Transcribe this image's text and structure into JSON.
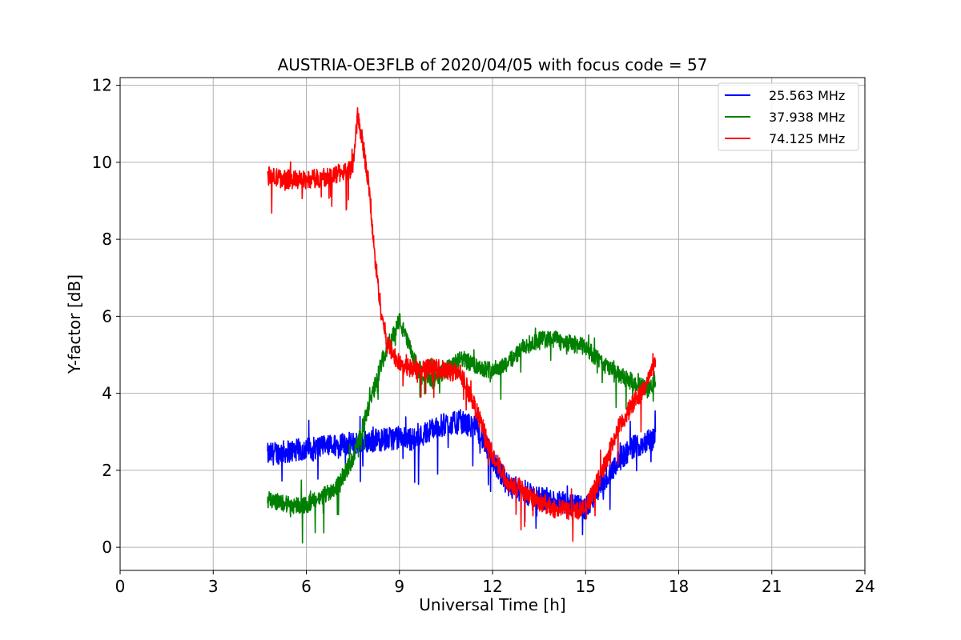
{
  "chart_data": {
    "type": "line",
    "title": "AUSTRIA-OE3FLB of 2020/04/05 with focus code = 57",
    "xlabel": "Universal Time [h]",
    "ylabel": "Y-factor [dB]",
    "xlim": [
      0,
      24
    ],
    "ylim": [
      -0.6,
      12.2
    ],
    "xticks": [
      0,
      3,
      6,
      9,
      12,
      15,
      18,
      21,
      24
    ],
    "yticks": [
      0,
      2,
      4,
      6,
      8,
      10,
      12
    ],
    "grid": true,
    "legend_position": "top-right",
    "series": [
      {
        "name": "25.563 MHz",
        "color": "#0000ff",
        "noise": 0.6,
        "x": [
          4.75,
          5.0,
          5.5,
          6.0,
          6.5,
          7.0,
          7.5,
          8.0,
          8.5,
          9.0,
          9.5,
          10.0,
          10.5,
          11.0,
          11.5,
          12.0,
          12.5,
          13.0,
          13.5,
          14.0,
          14.5,
          15.0,
          15.5,
          16.0,
          16.5,
          17.0,
          17.25
        ],
        "y": [
          2.4,
          2.45,
          2.5,
          2.55,
          2.6,
          2.65,
          2.7,
          2.75,
          2.8,
          2.85,
          2.8,
          3.05,
          3.2,
          3.25,
          3.1,
          2.3,
          1.6,
          1.4,
          1.3,
          1.2,
          1.1,
          1.0,
          1.6,
          2.2,
          2.6,
          2.75,
          2.8
        ]
      },
      {
        "name": "37.938 MHz",
        "color": "#008000",
        "noise": 0.45,
        "x": [
          4.75,
          5.0,
          5.5,
          6.0,
          6.5,
          7.0,
          7.5,
          8.0,
          8.25,
          8.5,
          9.0,
          9.5,
          10.0,
          10.5,
          11.0,
          11.5,
          12.0,
          12.5,
          13.0,
          13.5,
          14.0,
          14.5,
          15.0,
          15.5,
          16.0,
          16.5,
          17.0,
          17.25
        ],
        "y": [
          1.25,
          1.2,
          1.1,
          1.1,
          1.3,
          1.6,
          2.3,
          3.6,
          4.3,
          5.0,
          5.9,
          4.8,
          4.3,
          4.6,
          4.9,
          4.7,
          4.6,
          4.8,
          5.2,
          5.4,
          5.4,
          5.3,
          5.2,
          4.8,
          4.5,
          4.3,
          4.1,
          4.4
        ]
      },
      {
        "name": "74.125 MHz",
        "color": "#ff0000",
        "noise": 0.5,
        "x": [
          4.75,
          5.0,
          5.5,
          6.0,
          6.5,
          7.0,
          7.5,
          7.65,
          7.8,
          8.0,
          8.2,
          8.4,
          8.6,
          9.0,
          9.5,
          10.0,
          10.5,
          11.0,
          11.5,
          12.0,
          12.5,
          13.0,
          13.5,
          14.0,
          14.5,
          15.0,
          15.5,
          16.0,
          16.5,
          17.0,
          17.25
        ],
        "y": [
          9.65,
          9.6,
          9.55,
          9.55,
          9.6,
          9.7,
          9.85,
          11.2,
          10.6,
          9.5,
          7.6,
          6.2,
          5.3,
          4.75,
          4.6,
          4.65,
          4.6,
          4.5,
          3.5,
          2.4,
          1.7,
          1.5,
          1.2,
          1.0,
          0.95,
          1.0,
          1.9,
          3.0,
          3.7,
          4.3,
          4.8
        ]
      }
    ]
  }
}
